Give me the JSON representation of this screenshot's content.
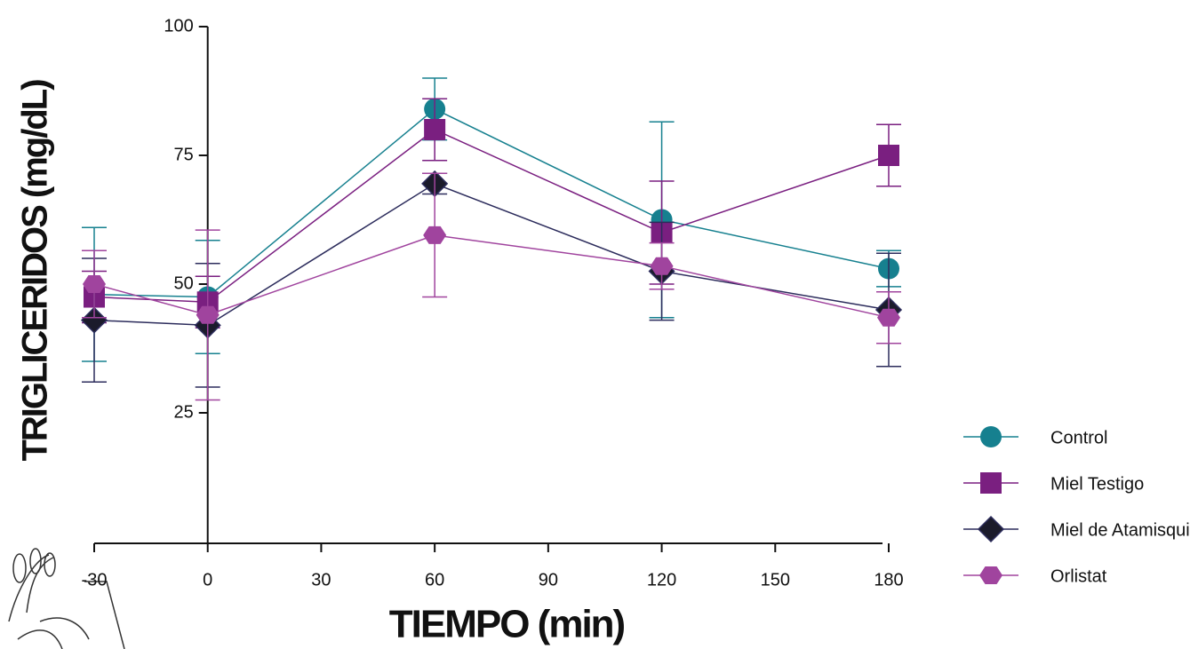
{
  "chart_data": {
    "type": "line",
    "x_label": "TIEMPO (min)",
    "y_label": "TRIGLICERIDOS (mg/dL)",
    "x": [
      -30,
      0,
      60,
      120,
      180
    ],
    "xlim": [
      -30,
      180
    ],
    "xticks": [
      -30,
      0,
      30,
      60,
      90,
      120,
      150,
      180
    ],
    "ylim": [
      0,
      100
    ],
    "yticks": [
      25,
      50,
      75,
      100
    ],
    "legend": "right",
    "series": [
      {
        "name": "Control",
        "color": "#16808f",
        "marker": "circle",
        "values": [
          48,
          47.5,
          84,
          62.5,
          53
        ],
        "errors": [
          13,
          11,
          6,
          19,
          3.5
        ]
      },
      {
        "name": "Miel Testigo",
        "color": "#7a1f80",
        "marker": "square",
        "values": [
          47.5,
          46.5,
          80,
          60,
          75
        ],
        "errors": [
          5,
          5,
          6,
          10,
          6
        ]
      },
      {
        "name": "Miel de Atamisqui",
        "color": "#2c2c5c",
        "marker": "diamond",
        "values": [
          43,
          42,
          69.5,
          52.5,
          45
        ],
        "errors": [
          12,
          12,
          2,
          9.5,
          11
        ]
      },
      {
        "name": "Orlistat",
        "color": "#a0449e",
        "marker": "hexagon",
        "values": [
          50,
          44,
          59.5,
          53.5,
          43.5
        ],
        "errors": [
          6.5,
          16.5,
          12,
          4.5,
          5
        ]
      }
    ]
  }
}
